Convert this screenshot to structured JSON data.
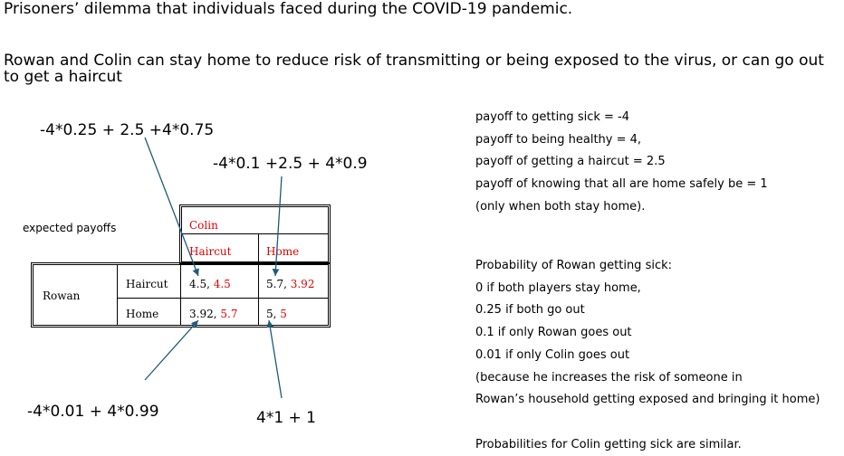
{
  "title": "Prisoners’ dilemma that individuals faced during the COVID-19 pandemic.",
  "intro": "Rowan and Colin   can stay home to reduce risk of  transmitting or being exposed to the virus,  or can go out to get a haircut",
  "formulas": {
    "hh": "-4*0.25 + 2.5 +4*0.75",
    "hm": "-4*0.1 +2.5 + 4*0.9",
    "mh": "-4*0.01 + 4*0.99",
    "mm": "4*1 + 1"
  },
  "table": {
    "caption": "expected payoffs",
    "col_player": "Colin",
    "row_player": "Rowan",
    "col_headers": [
      "Haircut",
      "Home"
    ],
    "row_headers": [
      "Haircut",
      "Home"
    ],
    "cells": [
      [
        {
          "rowan": "4.5,",
          "colin": "4.5"
        },
        {
          "rowan": "5.7,",
          "colin": "3.92"
        }
      ],
      [
        {
          "rowan": "3.92,",
          "colin": "5.7"
        },
        {
          "rowan": "5,",
          "colin": "5"
        }
      ]
    ]
  },
  "payoffs": [
    "payoff to getting sick = -4",
    "payoff to being healthy = 4,",
    "payoff of getting a haircut = 2.5",
    "payoff of knowing that all are home safely be = 1",
    "(only when both stay home)."
  ],
  "probabilities": [
    "Probability of Rowan getting sick:",
    "0 if both players  stay home,",
    "0.25 if both go out",
    "0.1 if only Rowan goes out",
    "0.01 if only Colin goes out",
    "(because he increases the risk of someone in",
    "Rowan’s household getting exposed and bringing it home)",
    "",
    "Probabilities for Colin getting sick are similar."
  ],
  "colors": {
    "colin_text": "#e00000",
    "arrow": "#1f5a7a"
  }
}
